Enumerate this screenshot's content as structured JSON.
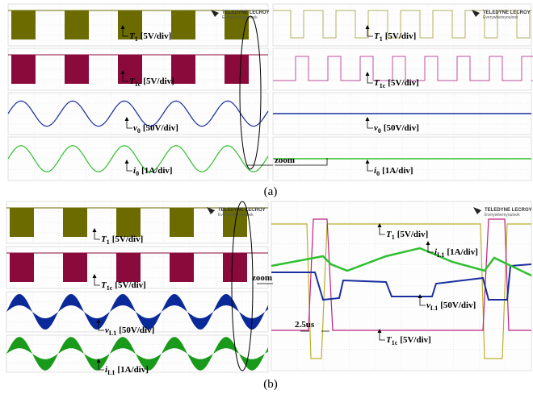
{
  "figure": {
    "panels": [
      {
        "caption": "(a)",
        "screens": [
          {
            "logo": "TELEDYNE LECROY",
            "tagline": "Everywhereyoulook",
            "labels": [
              {
                "symbol": "T",
                "sub": "1",
                "scale": "[5V/div]"
              },
              {
                "symbol": "T",
                "sub": "1c",
                "scale": "[5V/div]"
              },
              {
                "symbol": "v",
                "sub": "0",
                "scale": "[50V/div]"
              },
              {
                "symbol": "i",
                "sub": "0",
                "scale": "[1A/div]"
              }
            ]
          },
          {
            "logo": "TELEDYNE LECROY",
            "tagline": "Everywhereyoulook",
            "zoom": "zoom",
            "labels": [
              {
                "symbol": "T",
                "sub": "1",
                "scale": "[5V/div]"
              },
              {
                "symbol": "T",
                "sub": "1c",
                "scale": "[5V/div]"
              },
              {
                "symbol": "v",
                "sub": "0",
                "scale": "[50V/div]"
              },
              {
                "symbol": "i",
                "sub": "0",
                "scale": "[1A/div]"
              }
            ]
          }
        ]
      },
      {
        "caption": "(b)",
        "screens": [
          {
            "logo": "TELEDYNE LECROY",
            "tagline": "Everywhereyoulook",
            "labels": [
              {
                "symbol": "T",
                "sub": "1",
                "scale": "[5V/div]"
              },
              {
                "symbol": "T",
                "sub": "1c",
                "scale": "[5V/div]"
              },
              {
                "symbol": "v",
                "sub": "L1",
                "scale": "[50V/div]"
              },
              {
                "symbol": "i",
                "sub": "L1",
                "scale": "[1A/div]"
              }
            ]
          },
          {
            "logo": "TELEDYNE LECROY",
            "tagline": "Everywhereyoulook",
            "zoom": "zoom",
            "time": "2.5us",
            "labels": [
              {
                "symbol": "T",
                "sub": "1",
                "scale": "[5V/div]"
              },
              {
                "symbol": "i",
                "sub": "L1",
                "scale": "[1A/div]"
              },
              {
                "symbol": "v",
                "sub": "L1",
                "scale": "[50V/div]"
              },
              {
                "symbol": "T",
                "sub": "1c",
                "scale": "[5V/div]"
              }
            ]
          }
        ]
      }
    ]
  }
}
